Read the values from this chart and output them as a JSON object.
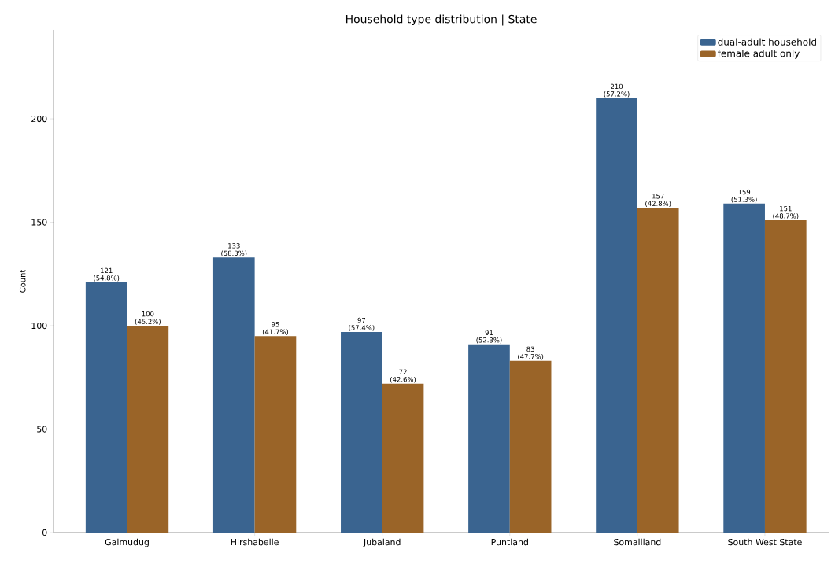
{
  "chart_data": {
    "type": "bar",
    "title": "Household type distribution | State",
    "ylabel": "Count",
    "categories": [
      "Galmudug",
      "Hirshabelle",
      "Jubaland",
      "Puntland",
      "Somaliland",
      "South West State"
    ],
    "series": [
      {
        "name": "dual-adult household",
        "color": "#3a6490",
        "values": [
          121,
          133,
          97,
          91,
          210,
          159
        ],
        "value_labels": [
          "121 (54.8%)",
          "133 (58.3%)",
          "97 (57.4%)",
          "91 (52.3%)",
          "210 (57.2%)",
          "159 (51.3%)"
        ]
      },
      {
        "name": "female adult only",
        "color": "#9a6428",
        "values": [
          100,
          95,
          72,
          83,
          157,
          151
        ],
        "value_labels": [
          "100 (45.2%)",
          "95 (41.7%)",
          "72 (42.6%)",
          "83 (47.7%)",
          "157 (42.8%)",
          "151 (48.7%)"
        ]
      }
    ],
    "ylim": [
      0,
      243
    ],
    "yticks": [
      0,
      50,
      100,
      150,
      200
    ],
    "legend": "top right"
  }
}
